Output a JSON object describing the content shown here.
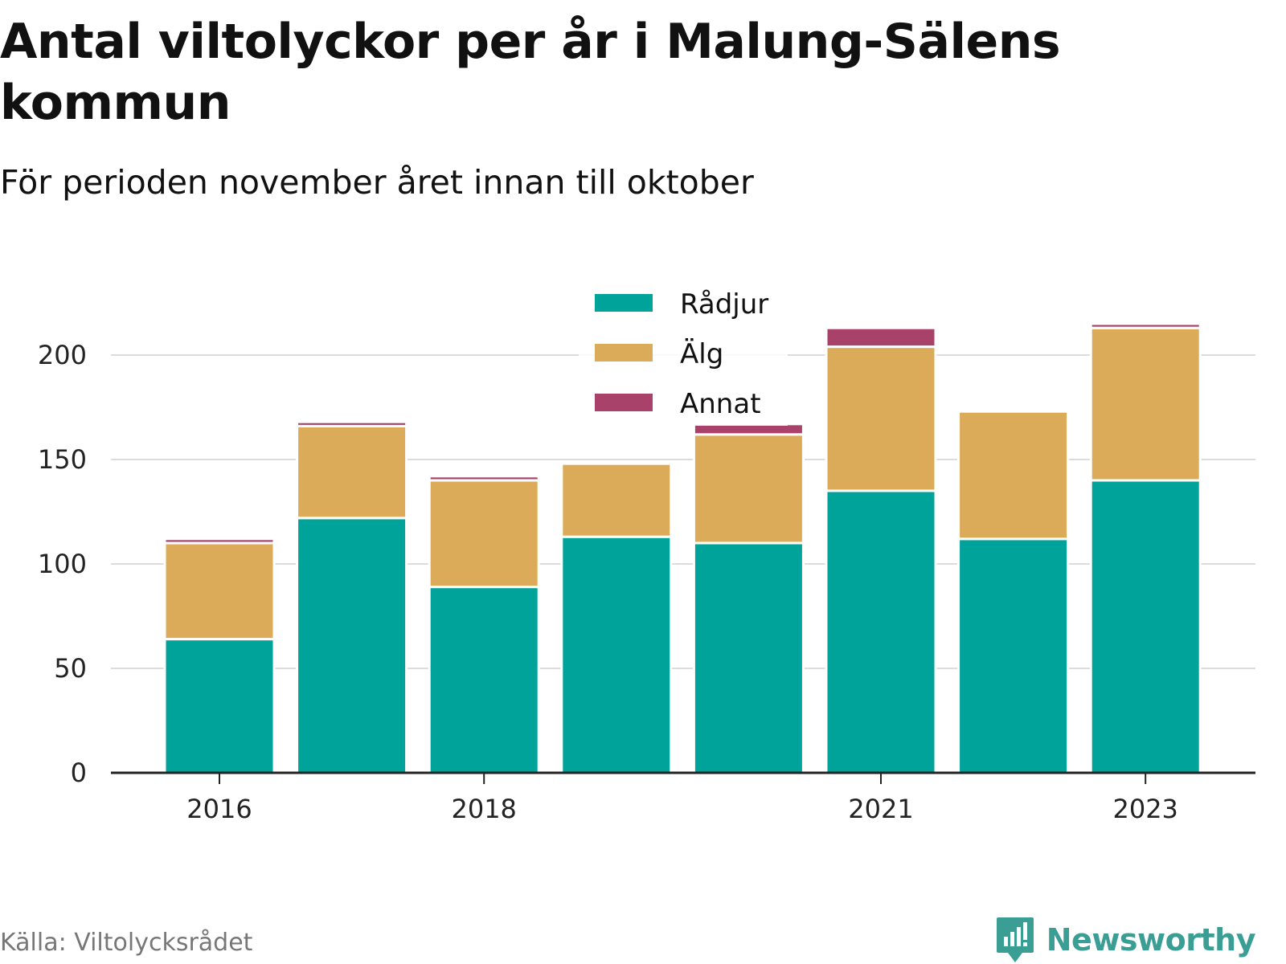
{
  "chart_data": {
    "type": "bar",
    "stacked": true,
    "title": "Antal viltolyckor per år i Malung-Sälens kommun",
    "subtitle": "För perioden november året innan till oktober",
    "x": [
      2016,
      2017,
      2018,
      2019,
      2020,
      2021,
      2022,
      2023
    ],
    "x_tick_labels": [
      "2016",
      "2018",
      "2021",
      "2023"
    ],
    "x_ticks": [
      2016,
      2018,
      2021,
      2023
    ],
    "ylim": [
      0,
      225
    ],
    "y_ticks": [
      0,
      50,
      100,
      150,
      200
    ],
    "grid": true,
    "legend_position": "top-center",
    "series": [
      {
        "name": "Rådjur",
        "color": "#00a39a",
        "values": [
          64,
          122,
          89,
          113,
          110,
          135,
          112,
          140
        ]
      },
      {
        "name": "Älg",
        "color": "#dbab5a",
        "values": [
          46,
          44,
          51,
          35,
          52,
          69,
          61,
          73
        ]
      },
      {
        "name": "Annat",
        "color": "#a8426a",
        "values": [
          2,
          2,
          2,
          0,
          5,
          9,
          0,
          2
        ]
      }
    ]
  },
  "source": "Källa: Viltolycksrådet",
  "brand": {
    "name": "Newsworthy",
    "icon": "newsworthy-logo-icon",
    "color": "#3a9e94"
  }
}
